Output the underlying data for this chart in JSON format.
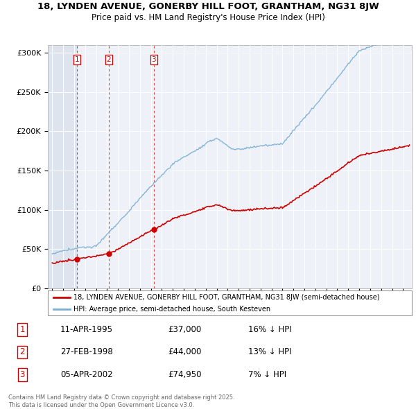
{
  "title_line1": "18, LYNDEN AVENUE, GONERBY HILL FOOT, GRANTHAM, NG31 8JW",
  "title_line2": "Price paid vs. HM Land Registry's House Price Index (HPI)",
  "sales": [
    {
      "date": 1995.27,
      "price": 37000,
      "label": "1"
    },
    {
      "date": 1998.16,
      "price": 44000,
      "label": "2"
    },
    {
      "date": 2002.26,
      "price": 74950,
      "label": "3"
    }
  ],
  "sale_color": "#cc0000",
  "hpi_color": "#7aadd4",
  "vline_color": "#cc0000",
  "legend_entries": [
    "18, LYNDEN AVENUE, GONERBY HILL FOOT, GRANTHAM, NG31 8JW (semi-detached house)",
    "HPI: Average price, semi-detached house, South Kesteven"
  ],
  "table_rows": [
    [
      "1",
      "11-APR-1995",
      "£37,000",
      "16% ↓ HPI"
    ],
    [
      "2",
      "27-FEB-1998",
      "£44,000",
      "13% ↓ HPI"
    ],
    [
      "3",
      "05-APR-2002",
      "£74,950",
      "7% ↓ HPI"
    ]
  ],
  "footnote": "Contains HM Land Registry data © Crown copyright and database right 2025.\nThis data is licensed under the Open Government Licence v3.0.",
  "ylim": [
    0,
    310000
  ],
  "yticks": [
    0,
    50000,
    100000,
    150000,
    200000,
    250000,
    300000
  ],
  "ytick_labels": [
    "£0",
    "£50K",
    "£100K",
    "£150K",
    "£200K",
    "£250K",
    "£300K"
  ],
  "xlim_start": 1992.6,
  "xlim_end": 2025.8,
  "background_color": "#eef2f8"
}
